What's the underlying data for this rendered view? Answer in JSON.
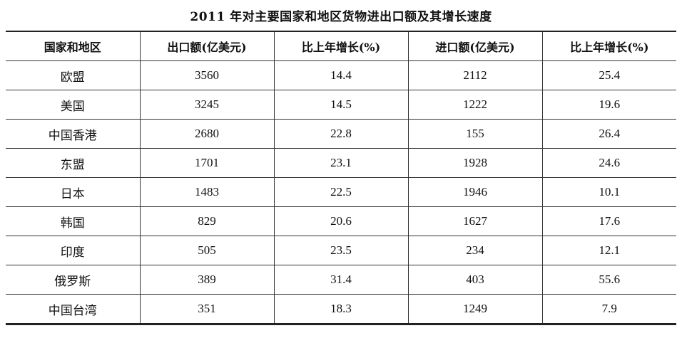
{
  "title": "2011 年对主要国家和地区货物进出口额及其增长速度",
  "table": {
    "headers": [
      "国家和地区",
      "出口额(亿美元)",
      "比上年增长(%)",
      "进口额(亿美元)",
      "比上年增长(%)"
    ],
    "rows": [
      [
        "欧盟",
        "3560",
        "14.4",
        "2112",
        "25.4"
      ],
      [
        "美国",
        "3245",
        "14.5",
        "1222",
        "19.6"
      ],
      [
        "中国香港",
        "2680",
        "22.8",
        "155",
        "26.4"
      ],
      [
        "东盟",
        "1701",
        "23.1",
        "1928",
        "24.6"
      ],
      [
        "日本",
        "1483",
        "22.5",
        "1946",
        "10.1"
      ],
      [
        "韩国",
        "829",
        "20.6",
        "1627",
        "17.6"
      ],
      [
        "印度",
        "505",
        "23.5",
        "234",
        "12.1"
      ],
      [
        "俄罗斯",
        "389",
        "31.4",
        "403",
        "55.6"
      ],
      [
        "中国台湾",
        "351",
        "18.3",
        "1249",
        "7.9"
      ]
    ]
  }
}
